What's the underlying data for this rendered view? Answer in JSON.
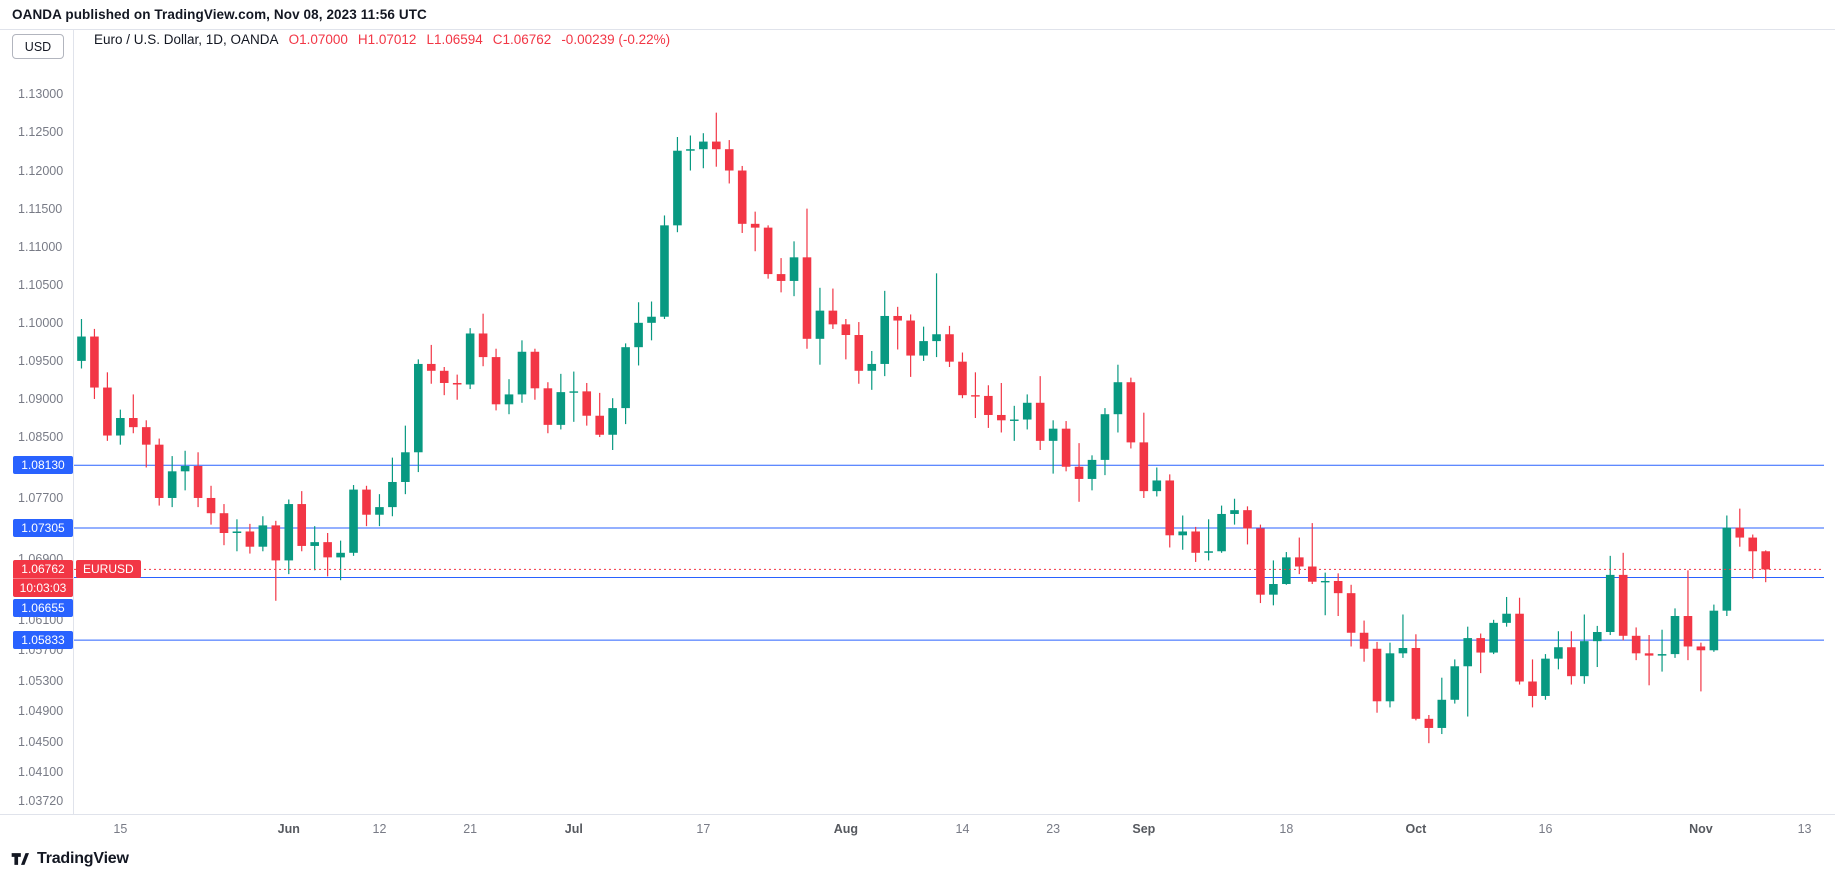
{
  "publish_info": "OANDA published on TradingView.com, Nov 08, 2023 11:56 UTC",
  "price_axis": {
    "unit": "USD"
  },
  "legend": {
    "title": "Euro / U.S. Dollar, 1D, OANDA",
    "open": "O1.07000",
    "high": "H1.07012",
    "low": "L1.06594",
    "close": "C1.06762",
    "change": "-0.00239 (-0.22%)"
  },
  "footer": {
    "brand": "TradingView"
  },
  "chart_data": {
    "type": "candlestick",
    "symbol": "EURUSD",
    "title": "Euro / U.S. Dollar",
    "interval": "1D",
    "provider": "OANDA",
    "price_range": [
      1.0355,
      1.1332
    ],
    "slot_count": 135,
    "colors": {
      "up": "#089981",
      "down": "#f23645",
      "level_line": "#2962ff",
      "last_line": "#f23645",
      "frame": "#e0e3eb"
    },
    "y_ticks": [
      1.13,
      1.125,
      1.12,
      1.115,
      1.11,
      1.105,
      1.1,
      1.095,
      1.09,
      1.085,
      1.077,
      1.069,
      1.061,
      1.057,
      1.053,
      1.049,
      1.045,
      1.041,
      1.0372
    ],
    "x_ticks": [
      {
        "index": 3,
        "label": "15"
      },
      {
        "index": 16,
        "label": "Jun",
        "month": true
      },
      {
        "index": 23,
        "label": "12"
      },
      {
        "index": 30,
        "label": "21"
      },
      {
        "index": 38,
        "label": "Jul",
        "month": true
      },
      {
        "index": 48,
        "label": "17"
      },
      {
        "index": 59,
        "label": "Aug",
        "month": true
      },
      {
        "index": 68,
        "label": "14"
      },
      {
        "index": 75,
        "label": "23"
      },
      {
        "index": 82,
        "label": "Sep",
        "month": true
      },
      {
        "index": 93,
        "label": "18"
      },
      {
        "index": 103,
        "label": "Oct",
        "month": true
      },
      {
        "index": 113,
        "label": "16"
      },
      {
        "index": 125,
        "label": "Nov",
        "month": true
      },
      {
        "index": 133,
        "label": "13"
      }
    ],
    "horizontal_lines": [
      {
        "price": 1.0813,
        "label": "1.08130"
      },
      {
        "price": 1.07305,
        "label": "1.07305"
      },
      {
        "price": 1.06655,
        "label": "1.06655"
      },
      {
        "price": 1.05833,
        "label": "1.05833"
      }
    ],
    "last_price": {
      "price": 1.06762,
      "label": "1.06762",
      "countdown": "10:03:03",
      "symbol_tag": "EURUSD"
    },
    "candles": [
      [
        1.095,
        1.1005,
        1.094,
        1.0982
      ],
      [
        1.0982,
        1.0992,
        1.09,
        1.0915
      ],
      [
        1.0915,
        1.0935,
        1.0845,
        1.0852
      ],
      [
        1.0852,
        1.0886,
        1.084,
        1.0875
      ],
      [
        1.0875,
        1.0906,
        1.0855,
        1.0863
      ],
      [
        1.0863,
        1.0872,
        1.081,
        1.084
      ],
      [
        1.084,
        1.0848,
        1.076,
        1.077
      ],
      [
        1.077,
        1.0825,
        1.0758,
        1.0805
      ],
      [
        1.0805,
        1.0832,
        1.078,
        1.0812
      ],
      [
        1.0812,
        1.083,
        1.0758,
        1.077
      ],
      [
        1.077,
        1.0786,
        1.0735,
        1.075
      ],
      [
        1.075,
        1.0762,
        1.0708,
        1.0724
      ],
      [
        1.0724,
        1.0742,
        1.07,
        1.0726
      ],
      [
        1.0726,
        1.0736,
        1.0697,
        1.0706
      ],
      [
        1.0706,
        1.0746,
        1.07,
        1.0734
      ],
      [
        1.0734,
        1.074,
        1.0635,
        1.0688
      ],
      [
        1.0688,
        1.0768,
        1.067,
        1.0762
      ],
      [
        1.0762,
        1.0779,
        1.07,
        1.0707
      ],
      [
        1.0707,
        1.0733,
        1.0675,
        1.0712
      ],
      [
        1.0712,
        1.0724,
        1.0667,
        1.0692
      ],
      [
        1.0692,
        1.0714,
        1.0662,
        1.0698
      ],
      [
        1.0698,
        1.0787,
        1.0694,
        1.0781
      ],
      [
        1.0781,
        1.0786,
        1.0733,
        1.0748
      ],
      [
        1.0748,
        1.0775,
        1.0733,
        1.0758
      ],
      [
        1.0758,
        1.0823,
        1.0746,
        1.0791
      ],
      [
        1.0791,
        1.0865,
        1.0775,
        1.083
      ],
      [
        1.083,
        1.0952,
        1.0804,
        1.0946
      ],
      [
        1.0946,
        1.0971,
        1.092,
        1.0937
      ],
      [
        1.0937,
        1.0942,
        1.0905,
        1.0921
      ],
      [
        1.0921,
        1.0932,
        1.0899,
        1.0919
      ],
      [
        1.0919,
        1.0993,
        1.0913,
        1.0986
      ],
      [
        1.0986,
        1.1012,
        1.0943,
        1.0955
      ],
      [
        1.0955,
        1.0966,
        1.0885,
        1.0893
      ],
      [
        1.0893,
        1.0926,
        1.088,
        1.0906
      ],
      [
        1.0906,
        1.0977,
        1.0895,
        1.0962
      ],
      [
        1.0962,
        1.0966,
        1.0899,
        1.0914
      ],
      [
        1.0914,
        1.0922,
        1.0855,
        1.0866
      ],
      [
        1.0866,
        1.0933,
        1.086,
        1.0909
      ],
      [
        1.0909,
        1.0936,
        1.087,
        1.091
      ],
      [
        1.091,
        1.0921,
        1.0865,
        1.0878
      ],
      [
        1.0878,
        1.0908,
        1.085,
        1.0853
      ],
      [
        1.0853,
        1.0901,
        1.0833,
        1.0888
      ],
      [
        1.0888,
        1.0973,
        1.0867,
        1.0968
      ],
      [
        1.0968,
        1.1027,
        1.0944,
        1.1
      ],
      [
        1.1,
        1.1028,
        1.0977,
        1.1008
      ],
      [
        1.1008,
        1.1141,
        1.1005,
        1.1128
      ],
      [
        1.1128,
        1.1244,
        1.1119,
        1.1226
      ],
      [
        1.1226,
        1.1246,
        1.12,
        1.1228
      ],
      [
        1.1228,
        1.1249,
        1.1203,
        1.1238
      ],
      [
        1.1238,
        1.1276,
        1.1205,
        1.1228
      ],
      [
        1.1228,
        1.124,
        1.1183,
        1.12
      ],
      [
        1.12,
        1.1206,
        1.1118,
        1.113
      ],
      [
        1.113,
        1.1146,
        1.1094,
        1.1125
      ],
      [
        1.1125,
        1.1128,
        1.1058,
        1.1064
      ],
      [
        1.1064,
        1.1085,
        1.104,
        1.1055
      ],
      [
        1.1055,
        1.1107,
        1.1035,
        1.1086
      ],
      [
        1.1086,
        1.115,
        1.0966,
        1.0979
      ],
      [
        1.0979,
        1.1046,
        1.0945,
        1.1016
      ],
      [
        1.1016,
        1.1045,
        1.0992,
        1.0998
      ],
      [
        1.0998,
        1.1005,
        1.0952,
        1.0984
      ],
      [
        1.0984,
        1.1001,
        1.092,
        1.0937
      ],
      [
        1.0937,
        1.0963,
        1.0912,
        1.0946
      ],
      [
        1.0946,
        1.1042,
        1.093,
        1.1009
      ],
      [
        1.1009,
        1.1021,
        1.0965,
        1.1003
      ],
      [
        1.1003,
        1.1011,
        1.0929,
        1.0957
      ],
      [
        1.0957,
        1.0995,
        1.095,
        1.0976
      ],
      [
        1.0976,
        1.1065,
        1.0955,
        1.0985
      ],
      [
        1.0985,
        1.0996,
        1.0942,
        1.0949
      ],
      [
        1.0949,
        1.0961,
        1.0901,
        1.0905
      ],
      [
        1.0905,
        1.0935,
        1.0875,
        1.0904
      ],
      [
        1.0904,
        1.0918,
        1.0862,
        1.0879
      ],
      [
        1.0879,
        1.0921,
        1.0856,
        1.0872
      ],
      [
        1.0872,
        1.0891,
        1.0845,
        1.0873
      ],
      [
        1.0873,
        1.0906,
        1.086,
        1.0895
      ],
      [
        1.0895,
        1.093,
        1.0833,
        1.0845
      ],
      [
        1.0845,
        1.0872,
        1.0802,
        1.0861
      ],
      [
        1.0861,
        1.0871,
        1.0805,
        1.0811
      ],
      [
        1.0811,
        1.0842,
        1.0765,
        1.0795
      ],
      [
        1.0795,
        1.0826,
        1.078,
        1.082
      ],
      [
        1.082,
        1.0888,
        1.08,
        1.088
      ],
      [
        1.088,
        1.0945,
        1.0856,
        1.0922
      ],
      [
        1.0922,
        1.0928,
        1.0835,
        1.0843
      ],
      [
        1.0843,
        1.0882,
        1.077,
        1.0779
      ],
      [
        1.0779,
        1.081,
        1.0772,
        1.0793
      ],
      [
        1.0793,
        1.0801,
        1.0705,
        1.0721
      ],
      [
        1.0721,
        1.0747,
        1.0702,
        1.0726
      ],
      [
        1.0726,
        1.0732,
        1.0686,
        1.0698
      ],
      [
        1.0698,
        1.0742,
        1.0688,
        1.07
      ],
      [
        1.07,
        1.076,
        1.0698,
        1.0749
      ],
      [
        1.0749,
        1.0769,
        1.0735,
        1.0754
      ],
      [
        1.0754,
        1.0759,
        1.0709,
        1.073
      ],
      [
        1.073,
        1.0735,
        1.0632,
        1.0643
      ],
      [
        1.0643,
        1.0688,
        1.0629,
        1.0657
      ],
      [
        1.0657,
        1.0699,
        1.0656,
        1.0692
      ],
      [
        1.0692,
        1.0718,
        1.067,
        1.068
      ],
      [
        1.068,
        1.0737,
        1.0657,
        1.066
      ],
      [
        1.066,
        1.0672,
        1.0616,
        1.0661
      ],
      [
        1.0661,
        1.0671,
        1.0615,
        1.0645
      ],
      [
        1.0645,
        1.0656,
        1.0575,
        1.0593
      ],
      [
        1.0593,
        1.0609,
        1.0555,
        1.0572
      ],
      [
        1.0572,
        1.0581,
        1.0488,
        1.0503
      ],
      [
        1.0503,
        1.058,
        1.0495,
        1.0566
      ],
      [
        1.0566,
        1.0617,
        1.056,
        1.0573
      ],
      [
        1.0573,
        1.0591,
        1.0478,
        1.048
      ],
      [
        1.048,
        1.0485,
        1.0448,
        1.0468
      ],
      [
        1.0468,
        1.0534,
        1.046,
        1.0505
      ],
      [
        1.0505,
        1.0558,
        1.05,
        1.0549
      ],
      [
        1.0549,
        1.0601,
        1.0483,
        1.0586
      ],
      [
        1.0586,
        1.0592,
        1.054,
        1.0567
      ],
      [
        1.0567,
        1.061,
        1.0565,
        1.0606
      ],
      [
        1.0606,
        1.064,
        1.0601,
        1.0618
      ],
      [
        1.0618,
        1.0639,
        1.0525,
        1.0529
      ],
      [
        1.0529,
        1.0558,
        1.0495,
        1.051
      ],
      [
        1.051,
        1.0565,
        1.0505,
        1.0559
      ],
      [
        1.0559,
        1.0595,
        1.0545,
        1.0574
      ],
      [
        1.0574,
        1.0595,
        1.0525,
        1.0536
      ],
      [
        1.0536,
        1.0617,
        1.0526,
        1.0582
      ],
      [
        1.0582,
        1.0602,
        1.0548,
        1.0594
      ],
      [
        1.0594,
        1.0694,
        1.059,
        1.0669
      ],
      [
        1.0669,
        1.0698,
        1.0583,
        1.0589
      ],
      [
        1.0589,
        1.06,
        1.0557,
        1.0566
      ],
      [
        1.0566,
        1.059,
        1.0524,
        1.0563
      ],
      [
        1.0563,
        1.0597,
        1.0542,
        1.0565
      ],
      [
        1.0565,
        1.0625,
        1.056,
        1.0615
      ],
      [
        1.0615,
        1.0675,
        1.0557,
        1.0575
      ],
      [
        1.0575,
        1.058,
        1.0516,
        1.057
      ],
      [
        1.057,
        1.063,
        1.0568,
        1.0622
      ],
      [
        1.0622,
        1.0747,
        1.0615,
        1.0731
      ],
      [
        1.0731,
        1.0756,
        1.0706,
        1.0718
      ],
      [
        1.0718,
        1.0722,
        1.0664,
        1.07
      ],
      [
        1.07,
        1.07012,
        1.06594,
        1.06762
      ]
    ]
  }
}
